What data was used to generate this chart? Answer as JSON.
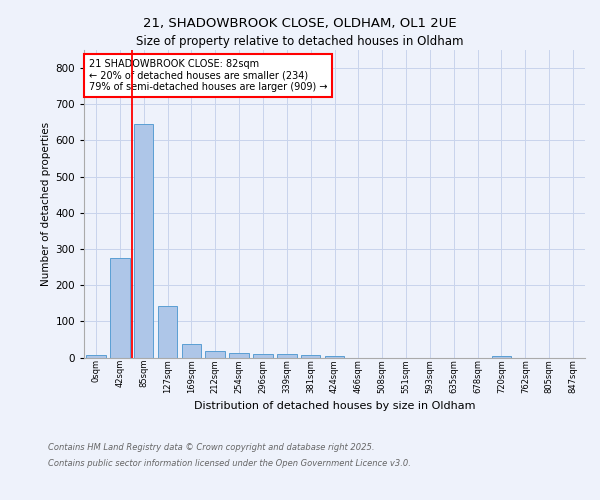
{
  "title_line1": "21, SHADOWBROOK CLOSE, OLDHAM, OL1 2UE",
  "title_line2": "Size of property relative to detached houses in Oldham",
  "xlabel": "Distribution of detached houses by size in Oldham",
  "ylabel": "Number of detached properties",
  "bar_labels": [
    "0sqm",
    "42sqm",
    "85sqm",
    "127sqm",
    "169sqm",
    "212sqm",
    "254sqm",
    "296sqm",
    "339sqm",
    "381sqm",
    "424sqm",
    "466sqm",
    "508sqm",
    "551sqm",
    "593sqm",
    "635sqm",
    "678sqm",
    "720sqm",
    "762sqm",
    "805sqm",
    "847sqm"
  ],
  "bar_values": [
    7,
    275,
    645,
    143,
    38,
    19,
    12,
    10,
    10,
    7,
    4,
    0,
    0,
    0,
    0,
    0,
    0,
    5,
    0,
    0,
    0
  ],
  "bar_color": "#aec6e8",
  "bar_edge_color": "#5a9fd4",
  "vline_color": "red",
  "ylim": [
    0,
    850
  ],
  "yticks": [
    0,
    100,
    200,
    300,
    400,
    500,
    600,
    700,
    800
  ],
  "annotation_text": "21 SHADOWBROOK CLOSE: 82sqm\n← 20% of detached houses are smaller (234)\n79% of semi-detached houses are larger (909) →",
  "annotation_box_color": "white",
  "annotation_box_edge": "red",
  "footer_line1": "Contains HM Land Registry data © Crown copyright and database right 2025.",
  "footer_line2": "Contains public sector information licensed under the Open Government Licence v3.0.",
  "background_color": "#eef2fb",
  "grid_color": "#c8d4ec"
}
